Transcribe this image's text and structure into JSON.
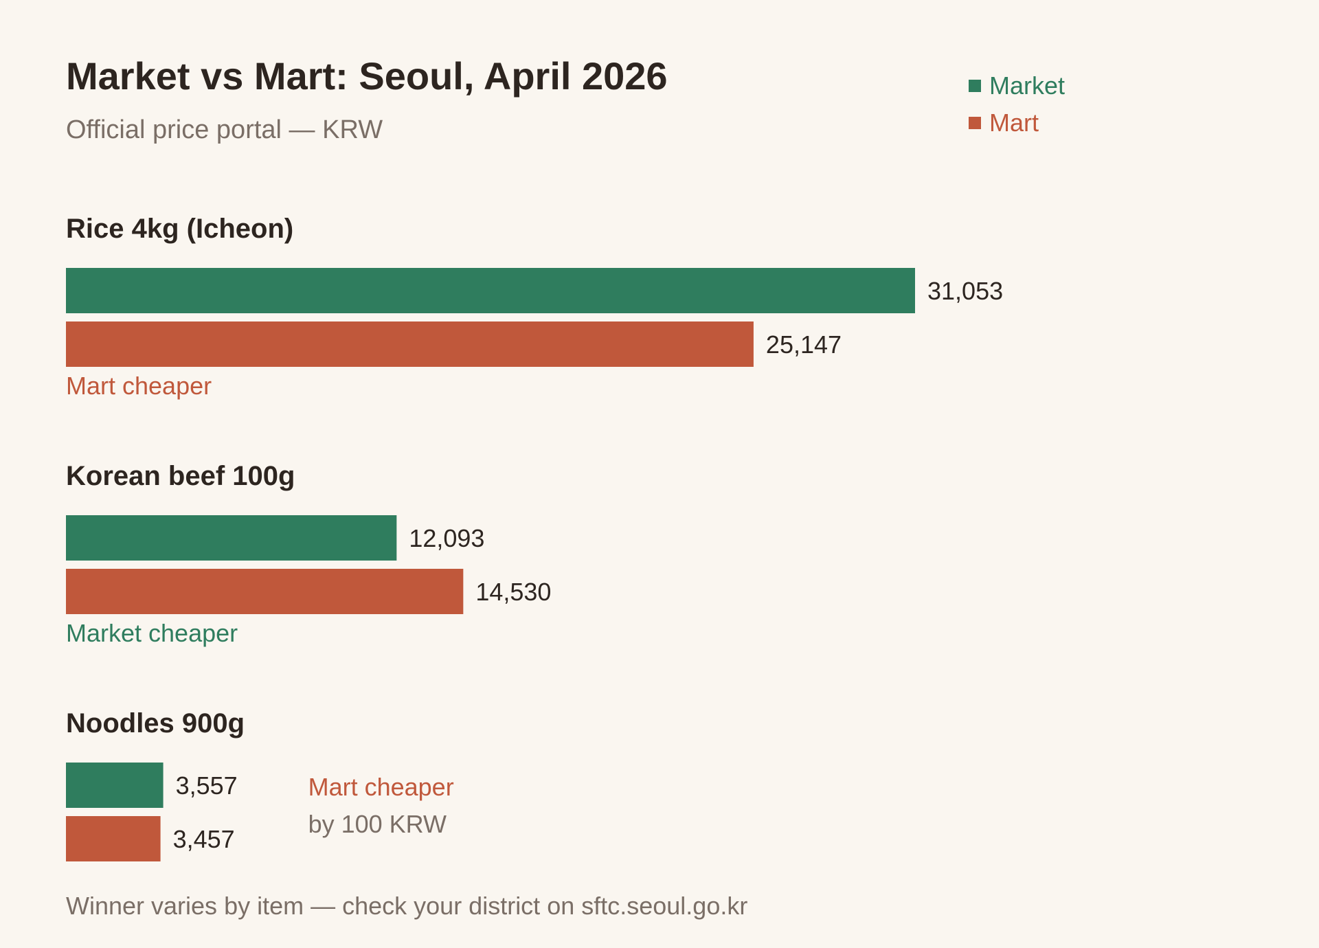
{
  "header": {
    "title": "Market vs Mart: Seoul, April 2026",
    "subtitle": "Official price portal — KRW"
  },
  "colors": {
    "market": "#2f7d5e",
    "mart": "#c0583b",
    "text": "#2d2520",
    "muted": "#7a6e66",
    "background": "#faf6f0"
  },
  "chart_data": {
    "type": "bar",
    "orientation": "horizontal",
    "title": "Market vs Mart: Seoul, April 2026",
    "subtitle": "Official price portal — KRW",
    "unit": "KRW",
    "legend_position": "top-right",
    "grid": false,
    "series": [
      {
        "name": "Market",
        "values": [
          31053,
          12093,
          3557
        ],
        "labels": [
          "31,053",
          "12,093",
          "3,557"
        ]
      },
      {
        "name": "Mart",
        "values": [
          25147,
          14530,
          3457
        ],
        "labels": [
          "25,147",
          "14,530",
          "3,457"
        ]
      }
    ],
    "categories": [
      "Rice 4kg (Icheon)",
      "Korean beef 100g",
      "Noodles 900g"
    ],
    "verdicts": [
      {
        "text": "Mart cheaper",
        "winner": "mart",
        "detail": ""
      },
      {
        "text": "Market cheaper",
        "winner": "market",
        "detail": ""
      },
      {
        "text": "Mart cheaper",
        "winner": "mart",
        "detail": "by 100 KRW"
      }
    ]
  },
  "footer": {
    "note": "Winner varies by item — check your district on sftc.seoul.go.kr"
  }
}
